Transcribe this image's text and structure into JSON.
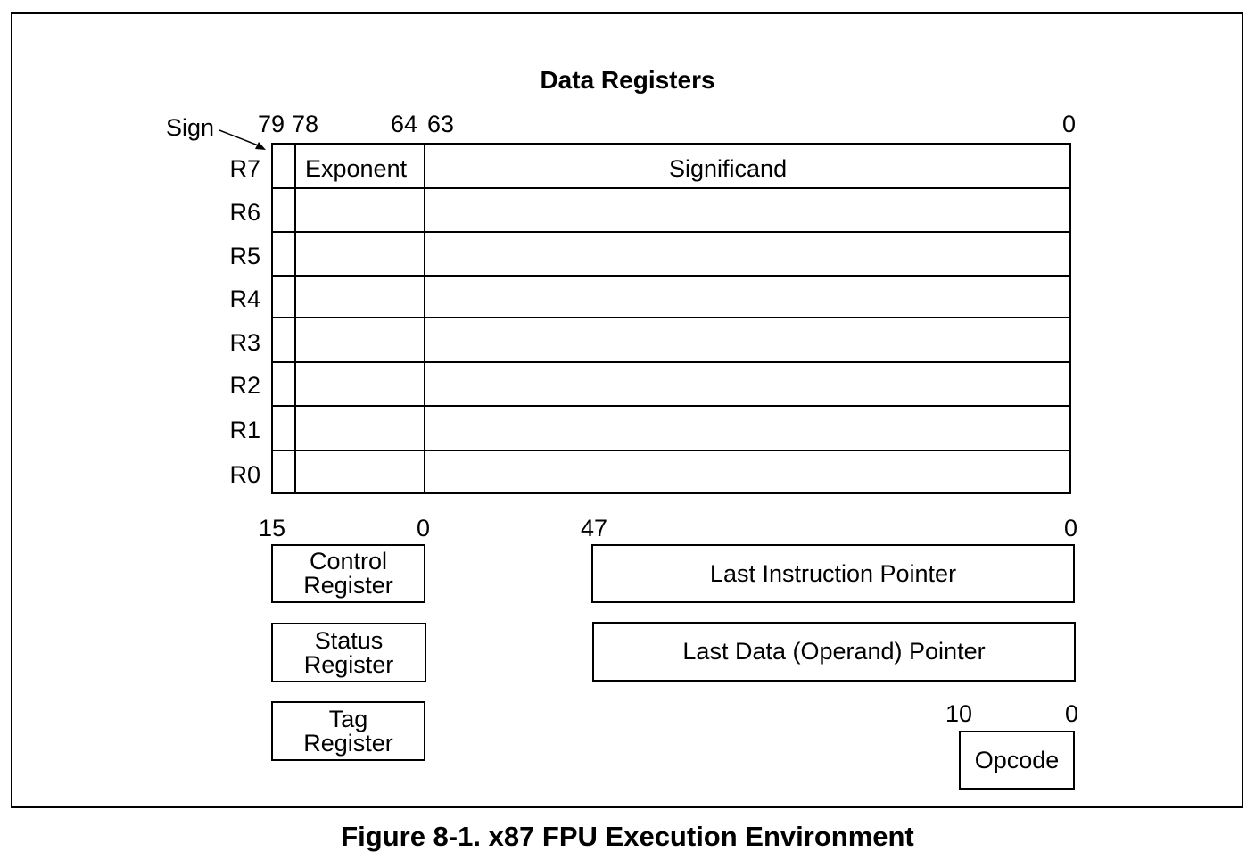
{
  "title": "Data Registers",
  "sign_label": "Sign",
  "data_bits": {
    "b79": "79",
    "b78": "78",
    "b64": "64",
    "b63": "63",
    "b0": "0"
  },
  "fields": {
    "exponent": "Exponent",
    "significand": "Significand"
  },
  "registers": [
    "R7",
    "R6",
    "R5",
    "R4",
    "R3",
    "R2",
    "R1",
    "R0"
  ],
  "ctrl_bits": {
    "b15": "15",
    "b0": "0"
  },
  "ptr_bits": {
    "b47": "47",
    "b0": "0"
  },
  "opcode_bits": {
    "b10": "10",
    "b0": "0"
  },
  "control_register": {
    "line1": "Control",
    "line2": "Register"
  },
  "status_register": {
    "line1": "Status",
    "line2": "Register"
  },
  "tag_register": {
    "line1": "Tag",
    "line2": "Register"
  },
  "last_instruction_pointer": "Last Instruction Pointer",
  "last_data_pointer": "Last Data (Operand) Pointer",
  "opcode": "Opcode",
  "caption": "Figure 8-1.  x87 FPU Execution Environment"
}
